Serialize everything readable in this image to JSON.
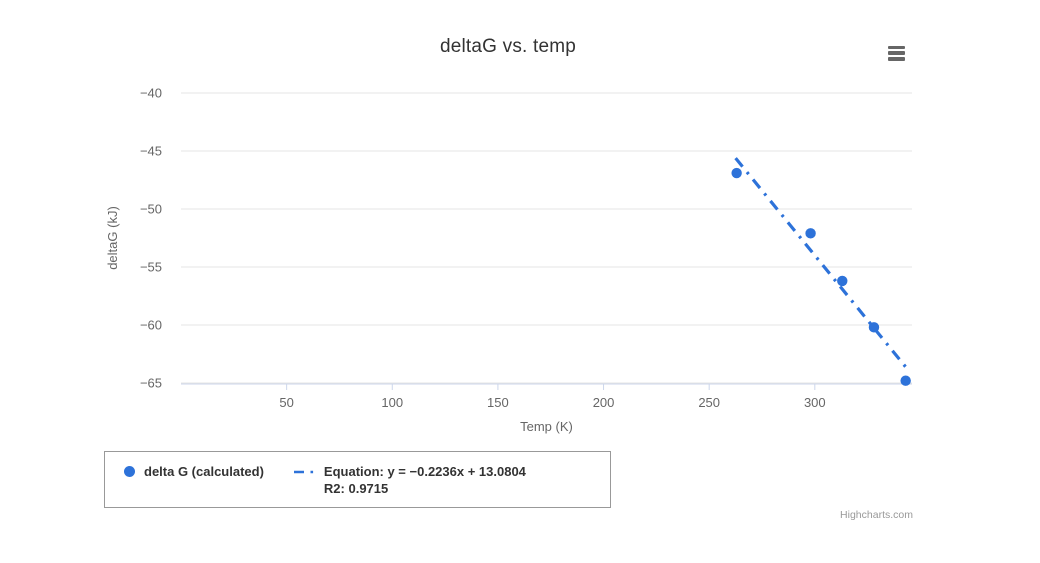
{
  "chart_data": {
    "type": "scatter",
    "title": "deltaG vs. temp",
    "xlabel": "Temp (K)",
    "ylabel": "deltaG (kJ)",
    "xlim": [
      0,
      346
    ],
    "ylim": [
      -65,
      -40
    ],
    "x_ticks": [
      {
        "value": 50,
        "label": "50"
      },
      {
        "value": 100,
        "label": "100"
      },
      {
        "value": 150,
        "label": "150"
      },
      {
        "value": 200,
        "label": "200"
      },
      {
        "value": 250,
        "label": "250"
      },
      {
        "value": 300,
        "label": "300"
      }
    ],
    "y_ticks": [
      {
        "value": -40,
        "label": "−40"
      },
      {
        "value": -45,
        "label": "−45"
      },
      {
        "value": -50,
        "label": "−50"
      },
      {
        "value": -55,
        "label": "−55"
      },
      {
        "value": -60,
        "label": "−60"
      },
      {
        "value": -65,
        "label": "−65"
      }
    ],
    "grid": "horizontal-only",
    "legend_position": "bottom-left",
    "series": [
      {
        "name": "delta G (calculated)",
        "type": "scatter",
        "marker": "circle",
        "points": [
          {
            "x": 263,
            "y": -46.9
          },
          {
            "x": 298,
            "y": -52.1
          },
          {
            "x": 313,
            "y": -56.2
          },
          {
            "x": 328,
            "y": -60.2
          },
          {
            "x": 343,
            "y": -64.8
          }
        ]
      },
      {
        "name": "Equation: y = −0.2236x + 13.0804 R2: 0.9715",
        "type": "line",
        "dash_style": "dash-dot",
        "slope": -0.2236,
        "intercept": 13.0804,
        "r2": 0.9715,
        "x_start": 262.5,
        "x_end": 343.5
      }
    ]
  },
  "legend": {
    "item1_label": "delta G (calculated)",
    "item2_line1": "Equation: y = −0.2236x + 13.0804",
    "item2_line2": "R2: 0.9715"
  },
  "credits_label": "Highcharts.com",
  "colors": {
    "series_blue": "#2d72d9",
    "grid_line": "#e6e6e6",
    "axis_line": "#ccd6eb",
    "title_text": "#333333",
    "axis_text": "#666666",
    "legend_text": "#333333",
    "legend_border": "#999999",
    "credits_text": "#999999",
    "menu_icon": "#666666",
    "background": "#ffffff"
  }
}
